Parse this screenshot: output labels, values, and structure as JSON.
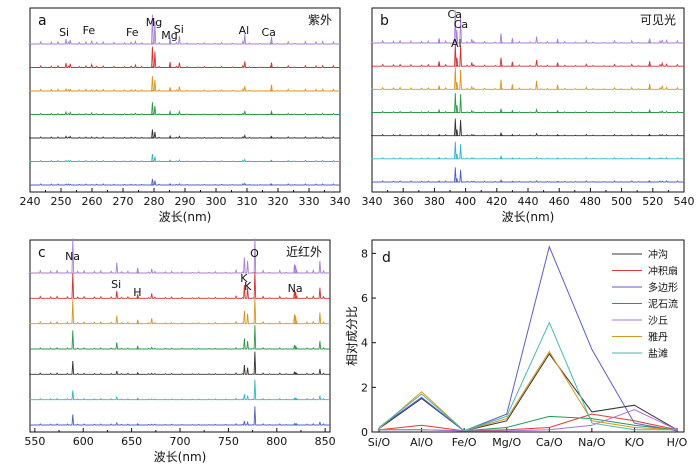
{
  "colors": {
    "black": "#333333",
    "red": "#e53935",
    "purple": "#5c5cc8",
    "green": "#1e9b55",
    "violet": "#b070d8",
    "orange": "#d9961e",
    "teal": "#47b8ae",
    "lightpurple": "#a77fd6",
    "darkred": "#d43030",
    "darkgreen": "#2d9a48",
    "darkgray": "#333333",
    "cyan": "#36b4c8",
    "blue": "#4f5fc8"
  },
  "chart_data": [
    {
      "type": "line",
      "panel": "a",
      "band": "紫外",
      "xlabel": "波长(nm)",
      "xlim": [
        240,
        340
      ],
      "xticks": [
        240,
        250,
        260,
        270,
        280,
        290,
        300,
        310,
        320,
        330,
        340
      ],
      "annotations": [
        {
          "text": "Si",
          "x": 251
        },
        {
          "text": "Fe",
          "x": 259
        },
        {
          "text": "Fe",
          "x": 273
        },
        {
          "text": "Mg",
          "x": 280
        },
        {
          "text": "Mg",
          "x": 285
        },
        {
          "text": "Si",
          "x": 288
        },
        {
          "text": "Al",
          "x": 309
        },
        {
          "text": "Ca",
          "x": 317
        }
      ],
      "series_colors": [
        "lightpurple",
        "darkred",
        "orange",
        "darkgreen",
        "darkgray",
        "cyan",
        "blue"
      ],
      "peaks": [
        {
          "x": 251.6,
          "heights": [
            0.15,
            0.18,
            0.08,
            0.1,
            0.07,
            0.05,
            0.04
          ]
        },
        {
          "x": 253,
          "heights": [
            0.12,
            0.15,
            0.06,
            0.08,
            0.06,
            0.04,
            0.03
          ]
        },
        {
          "x": 259.9,
          "heights": [
            0.1,
            0.12,
            0.05,
            0.06,
            0.04,
            0.03,
            0.02
          ]
        },
        {
          "x": 274,
          "heights": [
            0.08,
            0.1,
            0.05,
            0.05,
            0.03,
            0.02,
            0.02
          ]
        },
        {
          "x": 279.5,
          "heights": [
            0.9,
            0.85,
            0.6,
            0.5,
            0.35,
            0.3,
            0.25
          ]
        },
        {
          "x": 280.3,
          "heights": [
            0.7,
            0.65,
            0.45,
            0.35,
            0.25,
            0.2,
            0.18
          ]
        },
        {
          "x": 285.2,
          "heights": [
            0.2,
            0.22,
            0.15,
            0.12,
            0.08,
            0.06,
            0.05
          ]
        },
        {
          "x": 288.2,
          "heights": [
            0.25,
            0.2,
            0.18,
            0.12,
            0.07,
            0.06,
            0.05
          ]
        },
        {
          "x": 309.3,
          "heights": [
            0.3,
            0.25,
            0.2,
            0.15,
            0.1,
            0.08,
            0.06
          ]
        },
        {
          "x": 317.9,
          "heights": [
            0.22,
            0.2,
            0.25,
            0.12,
            0.06,
            0.05,
            0.04
          ]
        }
      ]
    },
    {
      "type": "line",
      "panel": "b",
      "band": "可见光",
      "xlabel": "波长(nm)",
      "xlim": [
        340,
        540
      ],
      "xticks": [
        340,
        360,
        380,
        400,
        420,
        440,
        460,
        480,
        500,
        520,
        540
      ],
      "annotations": [
        {
          "text": "Ca",
          "x": 393
        },
        {
          "text": "Ca",
          "x": 397
        },
        {
          "text": "Al",
          "x": 394
        }
      ],
      "series_colors": [
        "lightpurple",
        "darkred",
        "orange",
        "darkgreen",
        "darkgray",
        "cyan",
        "blue"
      ],
      "peaks": [
        {
          "x": 393.4,
          "heights": [
            1.0,
            0.9,
            0.9,
            0.8,
            0.7,
            0.7,
            0.6
          ]
        },
        {
          "x": 396.8,
          "heights": [
            0.9,
            0.85,
            0.8,
            0.75,
            0.65,
            0.6,
            0.5
          ]
        },
        {
          "x": 394.4,
          "heights": [
            0.4,
            0.35,
            0.3,
            0.3,
            0.25,
            0.2,
            0.15
          ]
        },
        {
          "x": 422.7,
          "heights": [
            0.3,
            0.35,
            0.4,
            0.15,
            0.1,
            0.1,
            0.08
          ]
        },
        {
          "x": 445.5,
          "heights": [
            0.2,
            0.25,
            0.35,
            0.12,
            0.08,
            0.06,
            0.05
          ]
        },
        {
          "x": 383,
          "heights": [
            0.15,
            0.2,
            0.15,
            0.1,
            0.05,
            0.05,
            0.04
          ]
        },
        {
          "x": 404,
          "heights": [
            0.12,
            0.15,
            0.1,
            0.08,
            0.05,
            0.04,
            0.03
          ]
        },
        {
          "x": 430,
          "heights": [
            0.15,
            0.18,
            0.2,
            0.08,
            0.05,
            0.04,
            0.03
          ]
        },
        {
          "x": 459,
          "heights": [
            0.12,
            0.15,
            0.18,
            0.07,
            0.04,
            0.04,
            0.03
          ]
        },
        {
          "x": 518,
          "heights": [
            0.14,
            0.2,
            0.22,
            0.1,
            0.05,
            0.05,
            0.04
          ]
        },
        {
          "x": 526,
          "heights": [
            0.1,
            0.12,
            0.14,
            0.06,
            0.04,
            0.03,
            0.03
          ]
        }
      ]
    },
    {
      "type": "line",
      "panel": "c",
      "band": "近红外",
      "xlabel": "波长(nm)",
      "xlim": [
        545,
        855
      ],
      "xticks": [
        550,
        600,
        650,
        700,
        750,
        800,
        850
      ],
      "annotations": [
        {
          "text": "Na",
          "x": 589
        },
        {
          "text": "Si",
          "x": 634
        },
        {
          "text": "H",
          "x": 656
        },
        {
          "text": "K",
          "x": 766
        },
        {
          "text": "K",
          "x": 770
        },
        {
          "text": "O",
          "x": 777
        },
        {
          "text": "Na",
          "x": 819
        }
      ],
      "series_colors": [
        "lightpurple",
        "darkred",
        "orange",
        "darkgreen",
        "darkgray",
        "cyan",
        "blue"
      ],
      "peaks": [
        {
          "x": 589.2,
          "heights": [
            1.0,
            0.95,
            0.9,
            0.7,
            0.5,
            0.35,
            0.4
          ]
        },
        {
          "x": 634.7,
          "heights": [
            0.3,
            0.28,
            0.3,
            0.25,
            0.12,
            0.1,
            0.08
          ]
        },
        {
          "x": 656.3,
          "heights": [
            0.15,
            0.15,
            0.15,
            0.12,
            0.06,
            0.05,
            0.05
          ]
        },
        {
          "x": 670.8,
          "heights": [
            0.12,
            0.18,
            0.2,
            0.06,
            0.04,
            0.03,
            0.03
          ]
        },
        {
          "x": 766.5,
          "heights": [
            0.45,
            0.5,
            0.48,
            0.4,
            0.35,
            0.2,
            0.15
          ]
        },
        {
          "x": 769.9,
          "heights": [
            0.35,
            0.4,
            0.38,
            0.3,
            0.25,
            0.15,
            0.1
          ]
        },
        {
          "x": 777.4,
          "heights": [
            1.0,
            0.98,
            0.95,
            0.9,
            0.85,
            0.75,
            0.7
          ]
        },
        {
          "x": 818.3,
          "heights": [
            0.25,
            0.3,
            0.35,
            0.15,
            0.08,
            0.06,
            0.05
          ]
        },
        {
          "x": 819.5,
          "heights": [
            0.22,
            0.25,
            0.3,
            0.12,
            0.06,
            0.05,
            0.04
          ]
        },
        {
          "x": 844.6,
          "heights": [
            0.35,
            0.4,
            0.42,
            0.3,
            0.2,
            0.15,
            0.12
          ]
        }
      ]
    },
    {
      "type": "line",
      "panel": "d",
      "ylabel": "相对成分比",
      "ylim": [
        0,
        8.6
      ],
      "yticks": [
        0,
        2,
        4,
        6,
        8
      ],
      "categories": [
        "Si/O",
        "Al/O",
        "Fe/O",
        "Mg/O",
        "Ca/O",
        "Na/O",
        "K/O",
        "H/O"
      ],
      "legend_position": "top-right",
      "series": [
        {
          "name": "冲沟",
          "color": "black",
          "values": [
            0.15,
            1.5,
            0.05,
            0.5,
            3.5,
            0.9,
            1.2,
            0.1
          ]
        },
        {
          "name": "冲积扇",
          "color": "red",
          "values": [
            0.1,
            0.3,
            0.05,
            0.1,
            0.2,
            0.8,
            0.5,
            0.1
          ]
        },
        {
          "name": "多边形",
          "color": "purple",
          "values": [
            0.2,
            1.55,
            0.05,
            0.8,
            8.3,
            3.7,
            0.4,
            0.05
          ]
        },
        {
          "name": "泥石流",
          "color": "green",
          "values": [
            0.1,
            0.1,
            0.05,
            0.2,
            0.7,
            0.6,
            0.3,
            0.1
          ]
        },
        {
          "name": "沙丘",
          "color": "violet",
          "values": [
            0.1,
            0.1,
            0.05,
            0.05,
            0.1,
            0.3,
            1.0,
            0.1
          ]
        },
        {
          "name": "雅丹",
          "color": "orange",
          "values": [
            0.15,
            1.8,
            0.05,
            0.6,
            3.6,
            0.5,
            0.2,
            0.1
          ]
        },
        {
          "name": "盐滩",
          "color": "teal",
          "values": [
            0.2,
            1.7,
            0.05,
            0.7,
            4.9,
            0.4,
            0.1,
            0.1
          ]
        }
      ]
    }
  ]
}
